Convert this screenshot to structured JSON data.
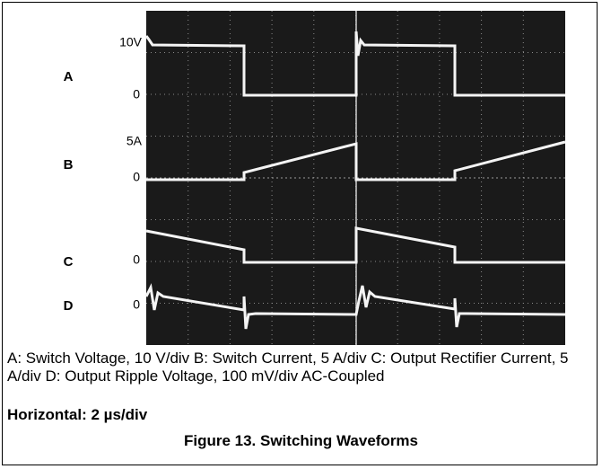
{
  "figure": {
    "channels": [
      {
        "name": "A",
        "scale": "10V",
        "zero": "0"
      },
      {
        "name": "B",
        "scale": "5A",
        "zero": "0"
      },
      {
        "name": "C",
        "zero": "0"
      },
      {
        "name": "D",
        "zero": "0"
      }
    ],
    "caption": "A: Switch Voltage, 10 V/div B: Switch Current, 5 A/div C: Output Rectifier Current, 5 A/div D: Output Ripple Voltage, 100 mV/div AC-Coupled",
    "horizontal": "Horizontal: 2 µs/div",
    "title": "Figure 13. Switching Waveforms"
  }
}
